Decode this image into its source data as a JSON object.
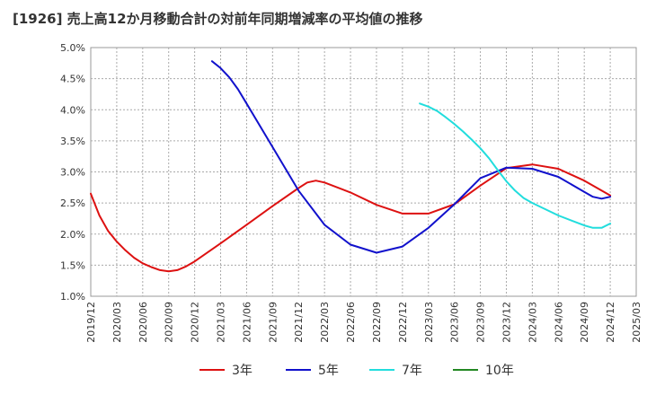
{
  "chart_data": {
    "type": "line",
    "title": "[1926]  売上高12か月移動合計の対前年同期増減率の平均値の推移",
    "xlabel": "",
    "ylabel": "",
    "ylim": [
      1.0,
      5.0
    ],
    "y_ticks": [
      "1.0%",
      "1.5%",
      "2.0%",
      "2.5%",
      "3.0%",
      "3.5%",
      "4.0%",
      "4.5%",
      "5.0%"
    ],
    "x_ticks": [
      "2019/12",
      "2020/03",
      "2020/06",
      "2020/09",
      "2020/12",
      "2021/03",
      "2021/06",
      "2021/09",
      "2021/12",
      "2022/03",
      "2022/06",
      "2022/09",
      "2022/12",
      "2023/03",
      "2023/06",
      "2023/09",
      "2023/12",
      "2024/03",
      "2024/06",
      "2024/09",
      "2024/12",
      "2025/03"
    ],
    "grid": true,
    "legend_position": "bottom",
    "series": [
      {
        "name": "3年",
        "color": "#dd1111",
        "x": [
          "2019/12",
          "2020/01",
          "2020/02",
          "2020/03",
          "2020/04",
          "2020/05",
          "2020/06",
          "2020/07",
          "2020/08",
          "2020/09",
          "2020/10",
          "2020/11",
          "2020/12",
          "2021/03",
          "2021/06",
          "2021/09",
          "2021/12",
          "2022/01",
          "2022/02",
          "2022/03",
          "2022/06",
          "2022/09",
          "2022/12",
          "2023/03",
          "2023/06",
          "2023/09",
          "2023/12",
          "2024/03",
          "2024/06",
          "2024/09",
          "2024/12"
        ],
        "values": [
          2.65,
          2.3,
          2.05,
          1.88,
          1.74,
          1.62,
          1.53,
          1.47,
          1.42,
          1.4,
          1.42,
          1.48,
          1.56,
          1.85,
          2.15,
          2.45,
          2.74,
          2.83,
          2.86,
          2.83,
          2.67,
          2.47,
          2.33,
          2.33,
          2.48,
          2.78,
          3.06,
          3.12,
          3.05,
          2.86,
          2.62
        ]
      },
      {
        "name": "5年",
        "color": "#1111cc",
        "x": [
          "2021/02",
          "2021/03",
          "2021/04",
          "2021/05",
          "2021/06",
          "2021/09",
          "2021/12",
          "2022/03",
          "2022/06",
          "2022/09",
          "2022/12",
          "2023/03",
          "2023/06",
          "2023/09",
          "2023/12",
          "2024/03",
          "2024/06",
          "2024/09",
          "2024/10",
          "2024/11",
          "2024/12"
        ],
        "values": [
          4.78,
          4.67,
          4.52,
          4.33,
          4.1,
          3.4,
          2.7,
          2.15,
          1.83,
          1.7,
          1.8,
          2.1,
          2.48,
          2.9,
          3.07,
          3.05,
          2.92,
          2.68,
          2.6,
          2.57,
          2.6
        ]
      },
      {
        "name": "7年",
        "color": "#22dddd",
        "x": [
          "2023/02",
          "2023/03",
          "2023/04",
          "2023/05",
          "2023/06",
          "2023/07",
          "2023/08",
          "2023/09",
          "2023/10",
          "2023/11",
          "2023/12",
          "2024/01",
          "2024/02",
          "2024/03",
          "2024/06",
          "2024/09",
          "2024/10",
          "2024/11",
          "2024/12"
        ],
        "values": [
          4.1,
          4.05,
          3.98,
          3.88,
          3.77,
          3.65,
          3.52,
          3.38,
          3.22,
          3.03,
          2.85,
          2.7,
          2.58,
          2.5,
          2.3,
          2.14,
          2.1,
          2.1,
          2.17
        ]
      },
      {
        "name": "10年",
        "color": "#228822",
        "x": [],
        "values": []
      }
    ]
  }
}
